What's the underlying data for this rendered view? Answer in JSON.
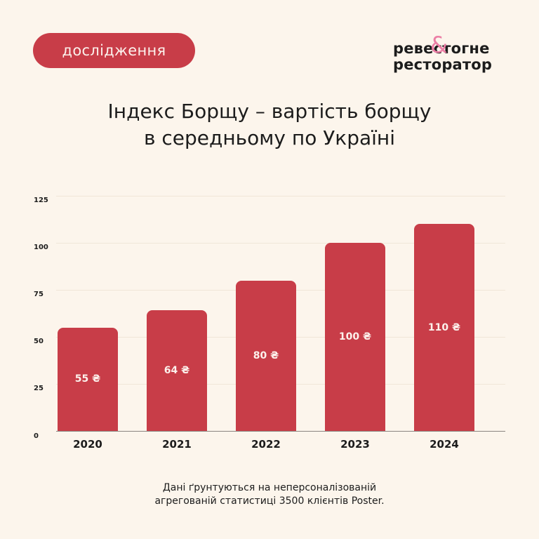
{
  "header": {
    "tag_label": "дослідження",
    "logo": {
      "line1_part1": "реве",
      "ampersand": "&",
      "line1_part2": "стогне",
      "line2": "ресторатор"
    },
    "title_line1": "Індекс Борщу – вартість борщу",
    "title_line2": "в середньому по Україні"
  },
  "colors": {
    "background": "#fcf5ec",
    "accent": "#c83d48",
    "logo_ampersand": "#ec7ea5",
    "text": "#1c1c1c"
  },
  "chart_data": {
    "type": "bar",
    "title": "Індекс Борщу – вартість борщу в середньому по Україні",
    "categories": [
      "2020",
      "2021",
      "2022",
      "2023",
      "2024"
    ],
    "values": [
      55,
      64,
      80,
      100,
      110
    ],
    "value_labels": [
      "55 ₴",
      "64 ₴",
      "80 ₴",
      "100 ₴",
      "110 ₴"
    ],
    "unit": "₴",
    "xlabel": "",
    "ylabel": "",
    "ylim": [
      0,
      125
    ],
    "yticks": [
      "0",
      "25",
      "50",
      "75",
      "100",
      "125"
    ],
    "grid": true,
    "legend": null
  },
  "footnote": {
    "line1": "Дані ґрунтуються на неперсоналізованій",
    "line2": "агрегованій статистиці 3500 клієнтів Poster."
  }
}
